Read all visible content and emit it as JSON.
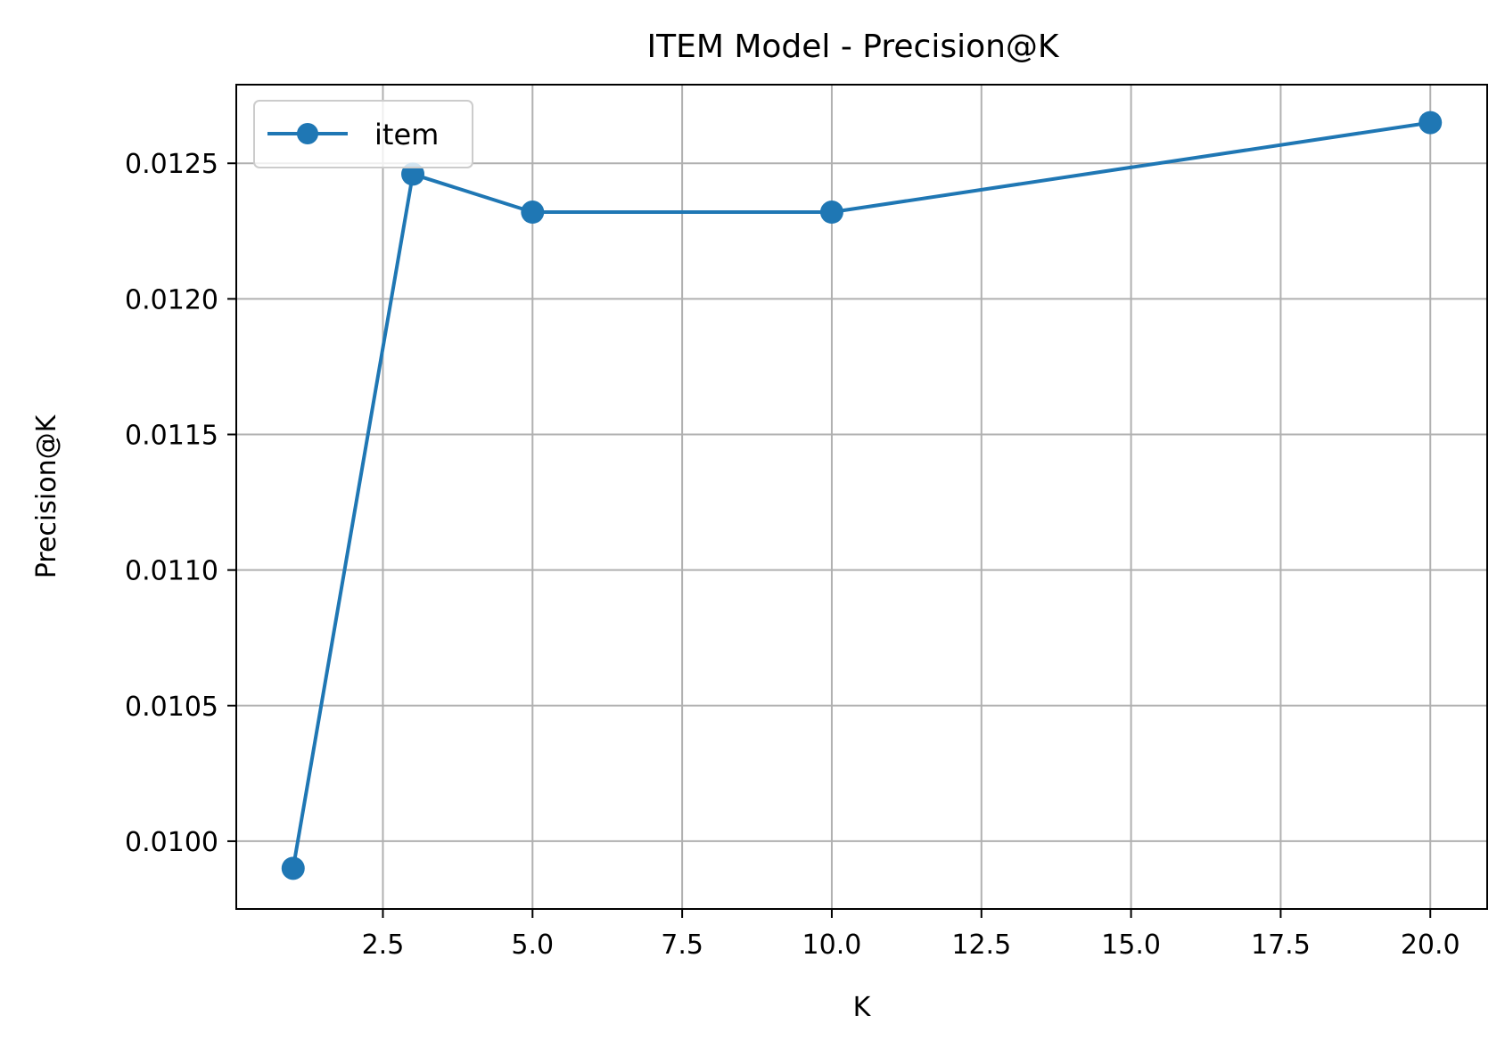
{
  "chart_data": {
    "type": "line",
    "title": "ITEM Model - Precision@K",
    "xlabel": "K",
    "ylabel": "Precision@K",
    "xlim": [
      0.05,
      20.95
    ],
    "ylim": [
      0.00975,
      0.01279
    ],
    "x_ticks": [
      2.5,
      5.0,
      7.5,
      10.0,
      12.5,
      15.0,
      17.5,
      20.0
    ],
    "x_tick_labels": [
      "2.5",
      "5.0",
      "7.5",
      "10.0",
      "12.5",
      "15.0",
      "17.5",
      "20.0"
    ],
    "y_ticks": [
      0.01,
      0.0105,
      0.011,
      0.0115,
      0.012,
      0.0125
    ],
    "y_tick_labels": [
      "0.0100",
      "0.0105",
      "0.0110",
      "0.0115",
      "0.0120",
      "0.0125"
    ],
    "grid": true,
    "legend_position": "top-left",
    "series": [
      {
        "name": "item",
        "color": "#1f77b4",
        "marker": "circle",
        "x": [
          1,
          3,
          5,
          10,
          20
        ],
        "y": [
          0.0099,
          0.01246,
          0.01232,
          0.01232,
          0.01265
        ]
      }
    ]
  }
}
